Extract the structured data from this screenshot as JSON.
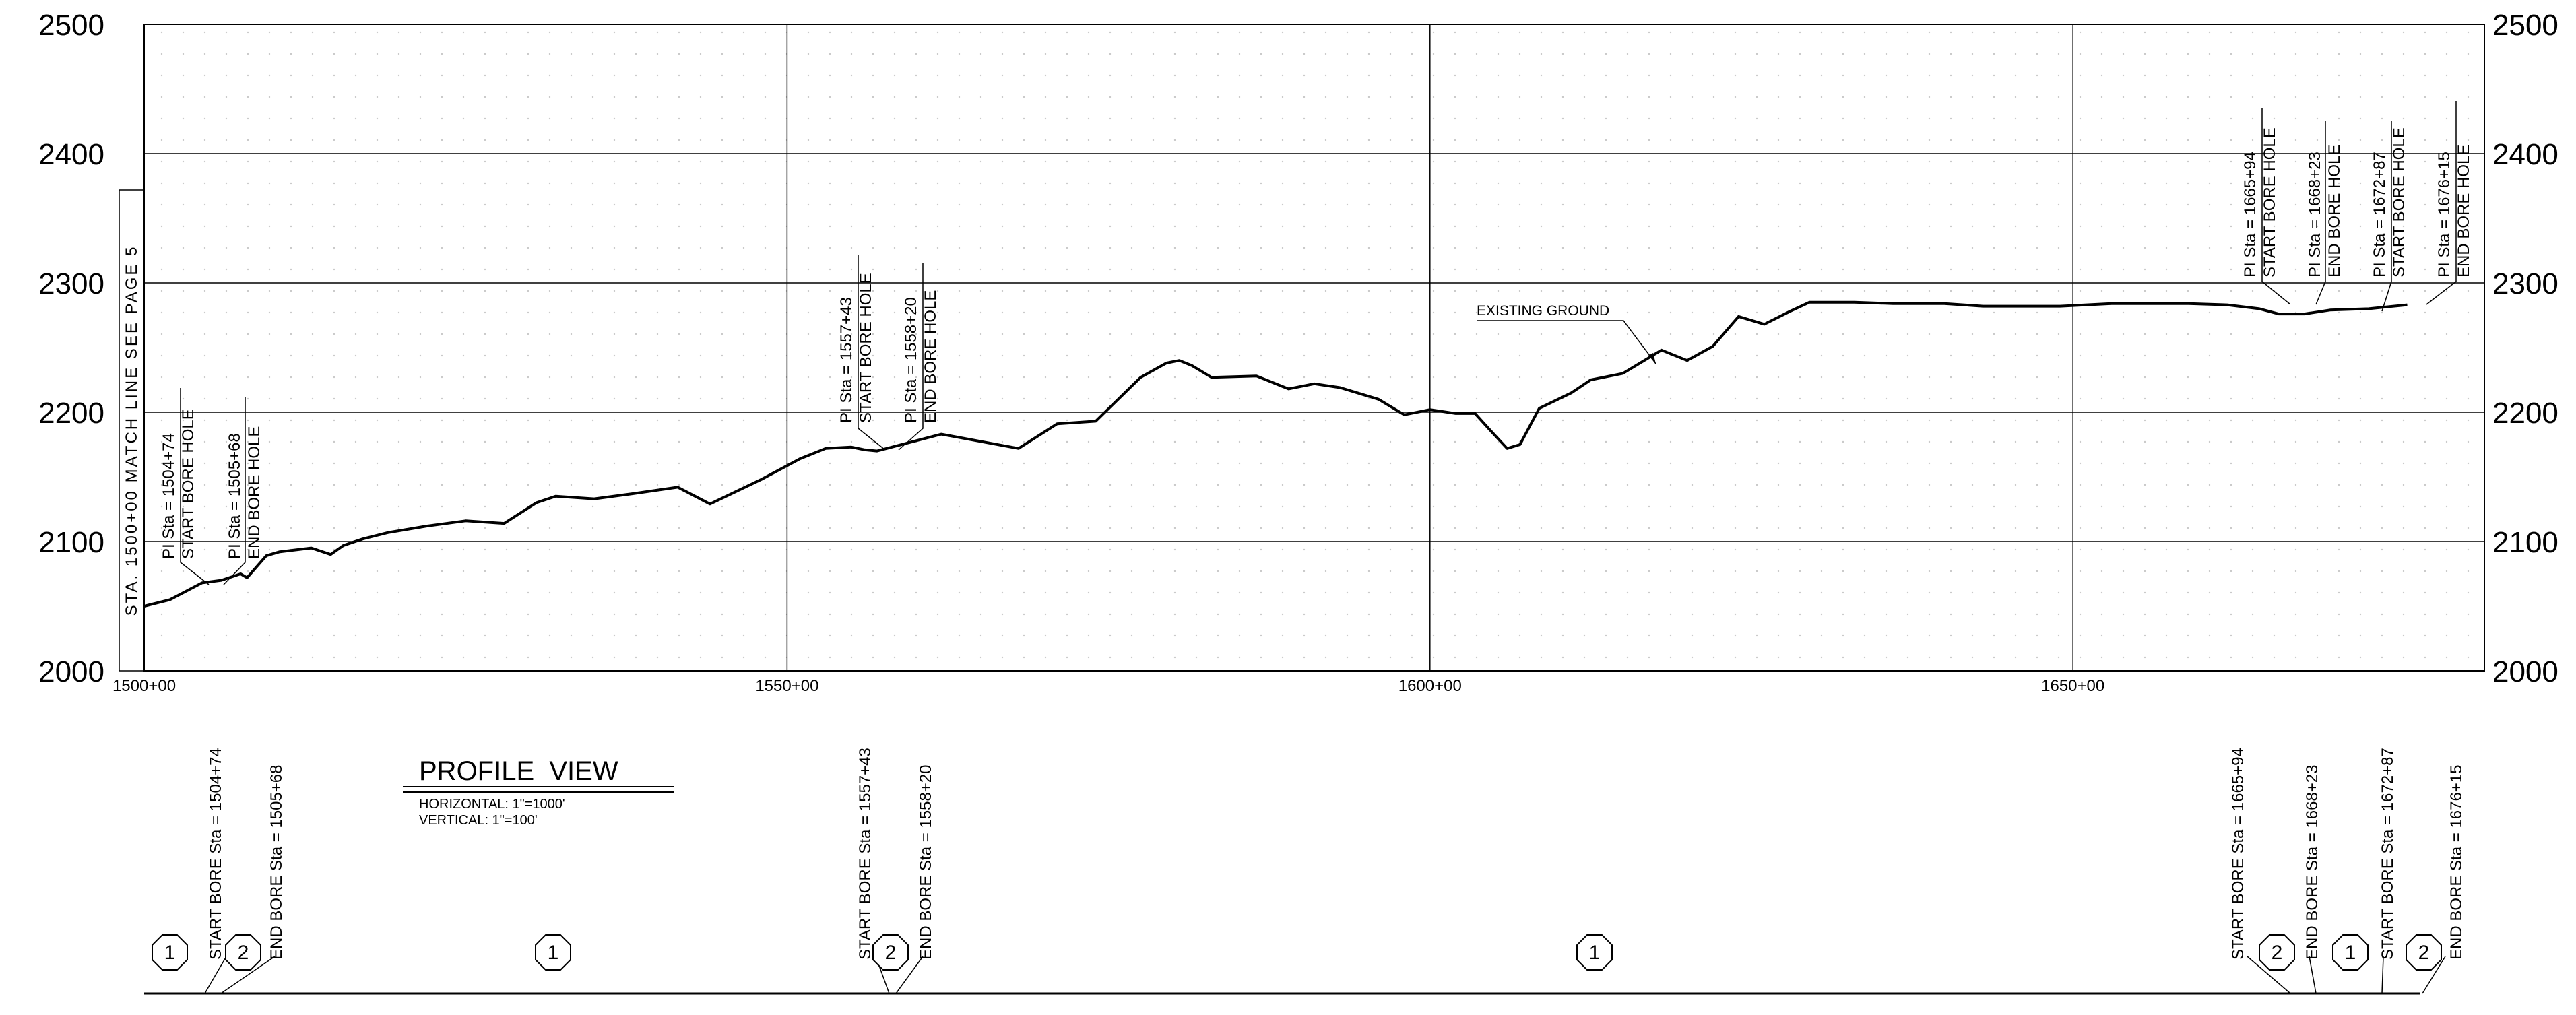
{
  "drawing": {
    "profile_title": "PROFILE  VIEW",
    "scale_horizontal": "HORIZONTAL:  1\"=1000'",
    "scale_vertical": "VERTICAL:  1\"=100'",
    "match_line": "STA. 1500+00  MATCH  LINE  SEE  PAGE  5",
    "existing_ground_label": "EXISTING GROUND"
  },
  "chart_data": {
    "type": "line",
    "title": "PROFILE  VIEW",
    "xlim": [
      150000,
      168200
    ],
    "ylim": [
      2000,
      2500
    ],
    "grid": true,
    "y_ticks": [
      "2000",
      "2100",
      "2200",
      "2300",
      "2400",
      "2500"
    ],
    "x_tick_values": [
      150000,
      155000,
      160000,
      165000
    ],
    "x_tick_labels": [
      "1500+00",
      "1550+00",
      "1600+00",
      "1650+00"
    ],
    "series": [
      {
        "name": "EXISTING GROUND",
        "x": [
          150000,
          150200,
          150450,
          150600,
          150750,
          150800,
          150950,
          151050,
          151300,
          151450,
          151550,
          151700,
          151900,
          152200,
          152500,
          152800,
          153050,
          153200,
          153500,
          153800,
          154150,
          154400,
          154800,
          155100,
          155300,
          155500,
          155600,
          155700,
          156200,
          156800,
          157100,
          157400,
          157750,
          157950,
          158050,
          158150,
          158300,
          158650,
          158900,
          159100,
          159300,
          159600,
          159800,
          160000,
          160200,
          160350,
          160450,
          160600,
          160700,
          160850,
          161100,
          161250,
          161500,
          161800,
          162000,
          162200,
          162400,
          162600,
          162800,
          162950,
          163150,
          163300,
          163600,
          164000,
          164300,
          164700,
          164900,
          165300,
          165600,
          165900,
          166200,
          166450,
          166600,
          166800,
          167000,
          167300,
          167600
        ],
        "y": [
          2050,
          2055,
          2068,
          2070,
          2075,
          2072,
          2089,
          2092,
          2095,
          2090,
          2097,
          2102,
          2107,
          2112,
          2116,
          2114,
          2130,
          2135,
          2133,
          2137,
          2142,
          2129,
          2148,
          2164,
          2172,
          2173,
          2171,
          2170,
          2183,
          2172,
          2191,
          2193,
          2227,
          2238,
          2240,
          2236,
          2227,
          2228,
          2218,
          2222,
          2219,
          2210,
          2198,
          2202,
          2199,
          2199,
          2188,
          2172,
          2175,
          2203,
          2215,
          2225,
          2230,
          2248,
          2240,
          2251,
          2274,
          2268,
          2278,
          2285,
          2285,
          2285,
          2284,
          2284,
          2282,
          2282,
          2282,
          2284,
          2284,
          2284,
          2283,
          2280,
          2276,
          2276,
          2279,
          2280,
          2283
        ]
      }
    ]
  },
  "pi_labels": [
    {
      "line1": "PI Sta = 1504+74",
      "line2": "START BORE HOLE",
      "bottom": "START BORE Sta = 1504+74"
    },
    {
      "line1": "PI Sta = 1505+68",
      "line2": "END BORE HOLE",
      "bottom": "END BORE Sta = 1505+68"
    },
    {
      "line1": "PI Sta = 1557+43",
      "line2": "START BORE HOLE",
      "bottom": "START BORE Sta = 1557+43"
    },
    {
      "line1": "PI Sta = 1558+20",
      "line2": "END BORE HOLE",
      "bottom": "END BORE Sta = 1558+20"
    },
    {
      "line1": "PI Sta = 1665+94",
      "line2": "START BORE HOLE",
      "bottom": "START BORE Sta = 1665+94"
    },
    {
      "line1": "PI Sta = 1668+23",
      "line2": "END BORE HOLE",
      "bottom": "END BORE Sta = 1668+23"
    },
    {
      "line1": "PI Sta = 1672+87",
      "line2": "START BORE HOLE",
      "bottom": "START BORE Sta = 1672+87"
    },
    {
      "line1": "PI Sta = 1676+15",
      "line2": "END BORE HOLE",
      "bottom": "END BORE Sta = 1676+15"
    }
  ],
  "segment_markers": [
    "1",
    "2",
    "1",
    "2",
    "1",
    "2",
    "1",
    "2"
  ]
}
